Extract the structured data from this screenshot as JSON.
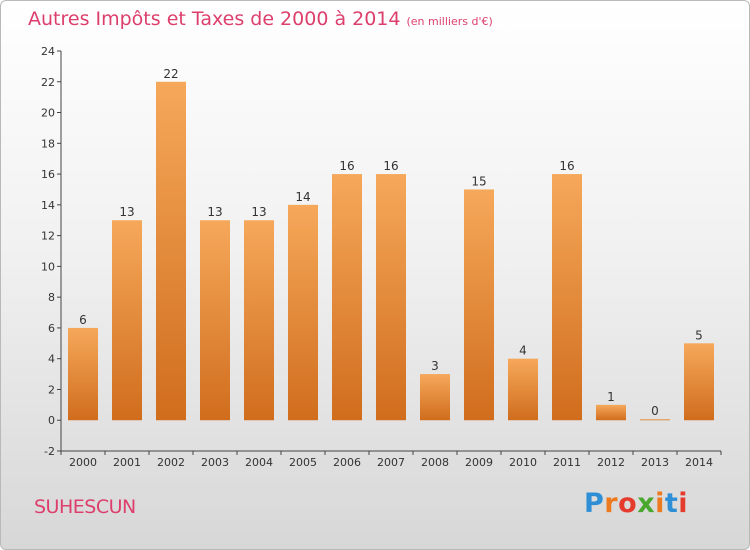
{
  "chart_data": {
    "type": "bar",
    "title": "Autres Impôts et Taxes de 2000 à 2014",
    "subtitle": "(en milliers d'€)",
    "categories": [
      "2000",
      "2001",
      "2002",
      "2003",
      "2004",
      "2005",
      "2006",
      "2007",
      "2008",
      "2009",
      "2010",
      "2011",
      "2012",
      "2013",
      "2014"
    ],
    "values": [
      6,
      13,
      22,
      13,
      13,
      14,
      16,
      16,
      3,
      15,
      4,
      16,
      1,
      0,
      5
    ],
    "data_labels": [
      "6",
      "13",
      "22",
      "13",
      "13",
      "14",
      "16",
      "16",
      "3",
      "15",
      "4",
      "16",
      "1",
      "0",
      "5"
    ],
    "ylim": [
      -2,
      24
    ],
    "yticks": [
      -2,
      0,
      2,
      4,
      6,
      8,
      10,
      12,
      14,
      16,
      18,
      20,
      22,
      24
    ],
    "xlabel": "",
    "ylabel": "",
    "grid": false,
    "legend": "none"
  },
  "footer": {
    "place_name": "SUHESCUN"
  },
  "logo": {
    "text": "Proxiti"
  },
  "colors": {
    "title": "#dd3f6c",
    "bar_light": "#f6a85a",
    "bar_dark": "#d06d1d",
    "axis": "#444444",
    "logo_letters": [
      "#2f8fd6",
      "#ee7a1f",
      "#e53b2c",
      "#4aa82f",
      "#ee7a1f",
      "#2f8fd6",
      "#e53b2c"
    ]
  }
}
